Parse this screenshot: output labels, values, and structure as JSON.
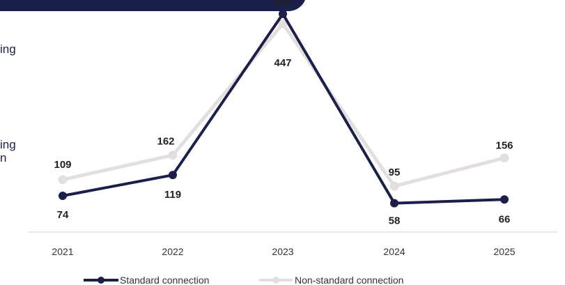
{
  "side_text": [
    "ing",
    "ing",
    "n"
  ],
  "chart_data": {
    "type": "line",
    "categories": [
      "2021",
      "2022",
      "2023",
      "2024",
      "2025"
    ],
    "series": [
      {
        "name": "Standard connection",
        "values": [
          74,
          119,
          468,
          58,
          66
        ],
        "color": "#1b1f4a"
      },
      {
        "name": "Non-standard connection",
        "values": [
          109,
          162,
          447,
          95,
          156
        ],
        "color": "#e3dfdf"
      }
    ],
    "title": "",
    "xlabel": "",
    "ylabel": "",
    "ylim": [
      0,
      480
    ],
    "grid": false,
    "legend_position": "bottom"
  }
}
